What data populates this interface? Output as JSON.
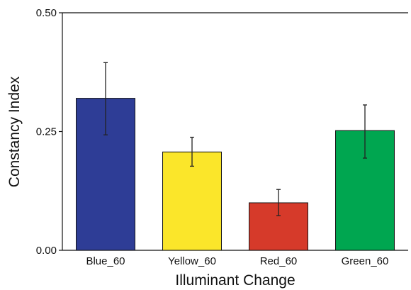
{
  "chart_data": {
    "type": "bar",
    "categories": [
      "Blue_60",
      "Yellow_60",
      "Red_60",
      "Green_60"
    ],
    "values": [
      0.32,
      0.207,
      0.1,
      0.252
    ],
    "error_low": [
      0.243,
      0.177,
      0.073,
      0.194
    ],
    "error_high": [
      0.395,
      0.238,
      0.128,
      0.306
    ],
    "colors": [
      "#2e3d96",
      "#fbe62a",
      "#d63a2a",
      "#00a650"
    ],
    "xlabel": "Illuminant Change",
    "ylabel": "Constancy Index",
    "ylim": [
      0,
      0.5
    ],
    "yticks": [
      0.0,
      0.25,
      0.5
    ],
    "ytick_labels": [
      "0.00",
      "0.25",
      "0.50"
    ],
    "grid": false,
    "legend": "none"
  }
}
